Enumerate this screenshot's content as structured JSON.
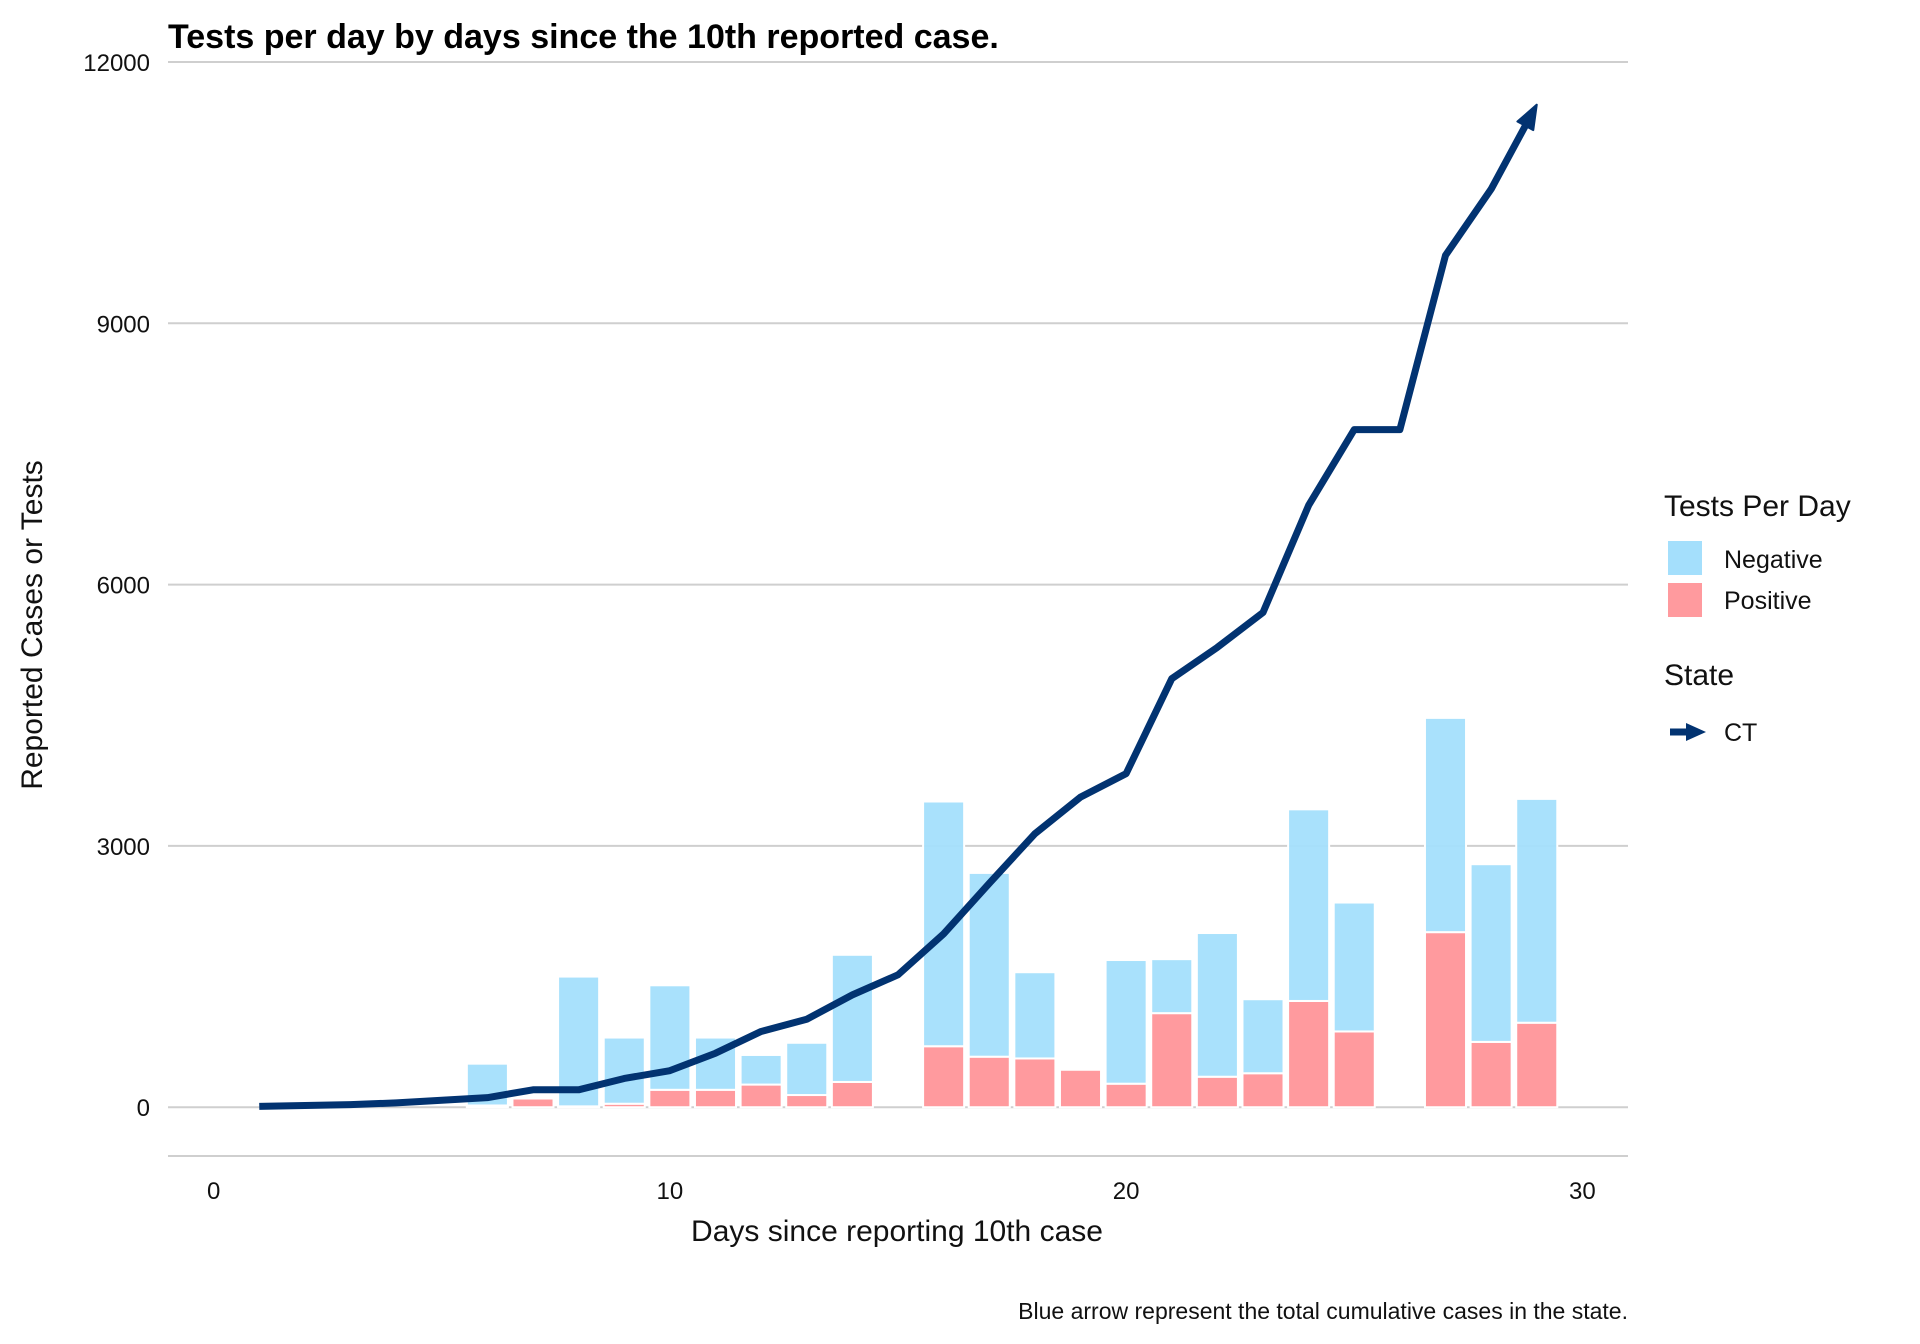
{
  "chart_data": {
    "type": "bar",
    "title": "Tests per day by days since the 10th reported case.",
    "xlabel": "Days since reporting 10th case",
    "ylabel": "Reported Cases or Tests",
    "caption": "Blue arrow represent the total cumulative cases in the state.",
    "xlim": [
      -1,
      31
    ],
    "ylim": [
      -560,
      12000
    ],
    "x_ticks": [
      0,
      10,
      20,
      30
    ],
    "y_ticks": [
      0,
      3000,
      6000,
      9000,
      12000
    ],
    "grid": "horizontal",
    "stacked": true,
    "legend_fill_title": "Tests Per Day",
    "legend_line_title": "State",
    "legend_position": "right",
    "colors": {
      "negative": "#A4DFFC",
      "positive": "#FF9A9E",
      "line": "#023371",
      "grid": "#CFCFCF"
    },
    "x": [
      6,
      7,
      8,
      9,
      10,
      11,
      12,
      13,
      14,
      16,
      17,
      18,
      19,
      20,
      21,
      22,
      23,
      24,
      25,
      27,
      28,
      29
    ],
    "series": [
      {
        "name": "Positive",
        "values": [
          20,
          100,
          10,
          40,
          200,
          200,
          260,
          140,
          290,
          700,
          580,
          560,
          430,
          270,
          1080,
          350,
          390,
          1220,
          870,
          2010,
          750,
          970
        ]
      },
      {
        "name": "Negative",
        "values": [
          480,
          0,
          1490,
          760,
          1200,
          600,
          340,
          600,
          1460,
          2810,
          2110,
          990,
          0,
          1420,
          620,
          1650,
          850,
          2200,
          1480,
          2460,
          2040,
          2570
        ]
      }
    ],
    "line_series": {
      "name": "CT",
      "x": [
        1,
        2,
        3,
        4,
        5,
        6,
        7,
        8,
        9,
        10,
        11,
        12,
        13,
        14,
        15,
        16,
        17,
        18,
        19,
        20,
        21,
        22,
        23,
        24,
        25,
        26,
        27,
        28,
        29
      ],
      "values": [
        10,
        20,
        30,
        50,
        80,
        110,
        200,
        200,
        330,
        420,
        620,
        870,
        1010,
        1290,
        1520,
        1990,
        2570,
        3140,
        3560,
        3830,
        4920,
        5280,
        5680,
        6910,
        7780,
        7780,
        9780,
        10540,
        11510
      ]
    }
  }
}
